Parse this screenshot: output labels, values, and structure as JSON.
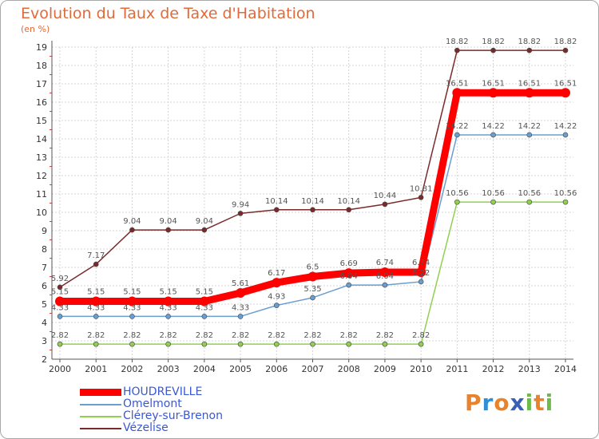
{
  "chart_data": {
    "type": "line",
    "title": "Evolution du Taux de Taxe d'Habitation",
    "subtitle": "(en %)",
    "x": [
      "2000",
      "2001",
      "2002",
      "2003",
      "2004",
      "2005",
      "2006",
      "2007",
      "2008",
      "2009",
      "2010",
      "2011",
      "2012",
      "2013",
      "2014"
    ],
    "ylim": [
      2,
      19
    ],
    "yticks": [
      "2",
      "3",
      "4",
      "5",
      "6",
      "7",
      "8",
      "9",
      "10",
      "11",
      "12",
      "13",
      "14",
      "15",
      "16",
      "17",
      "18",
      "19"
    ],
    "grid": true,
    "legend_position": "bottom-left",
    "series": [
      {
        "name": "HOUDREVILLE",
        "color": "#ff0000",
        "values": [
          5.15,
          5.15,
          5.15,
          5.15,
          5.15,
          5.61,
          6.17,
          6.5,
          6.69,
          6.74,
          6.74,
          16.51,
          16.51,
          16.51,
          16.51
        ],
        "labels": [
          "5.15",
          "5.15",
          "5.15",
          "5.15",
          "5.15",
          "5.61",
          "6.17",
          "6.5",
          "6.69",
          "6.74",
          "6.74",
          "16.51",
          "16.51",
          "16.51",
          "16.51"
        ]
      },
      {
        "name": "Omelmont",
        "color": "#6a9ed0",
        "values": [
          4.33,
          4.33,
          4.33,
          4.33,
          4.33,
          4.33,
          4.93,
          5.35,
          6.04,
          6.04,
          6.22,
          14.22,
          14.22,
          14.22,
          14.22
        ],
        "labels": [
          "4.33",
          "4.33",
          "4.33",
          "4.33",
          "4.33",
          "4.33",
          "4.93",
          "5.35",
          "6.04",
          "6.04",
          "6.22",
          "14.22",
          "14.22",
          "14.22",
          "14.22"
        ]
      },
      {
        "name": "Clérey-sur-Brenon",
        "color": "#8fd14f",
        "values": [
          2.82,
          2.82,
          2.82,
          2.82,
          2.82,
          2.82,
          2.82,
          2.82,
          2.82,
          2.82,
          2.82,
          10.56,
          10.56,
          10.56,
          10.56
        ],
        "labels": [
          "2.82",
          "2.82",
          "2.82",
          "2.82",
          "2.82",
          "2.82",
          "2.82",
          "2.82",
          "2.82",
          "2.82",
          "2.82",
          "10.56",
          "10.56",
          "10.56",
          "10.56"
        ]
      },
      {
        "name": "Vézelise",
        "color": "#7a2a2a",
        "values": [
          5.92,
          7.17,
          9.04,
          9.04,
          9.04,
          9.94,
          10.14,
          10.14,
          10.14,
          10.44,
          10.81,
          18.82,
          18.82,
          18.82,
          18.82
        ],
        "labels": [
          "5.92",
          "7.17",
          "9.04",
          "9.04",
          "9.04",
          "9.94",
          "10.14",
          "10.14",
          "10.14",
          "10.44",
          "10.81",
          "18.82",
          "18.82",
          "18.82",
          "18.82"
        ]
      }
    ]
  },
  "logo": {
    "text": "Proxiti",
    "letters": [
      "P",
      "r",
      "o",
      "x",
      "i",
      "t",
      "i"
    ],
    "colors": [
      "#e9832b",
      "#2e8fd6",
      "#e9832b",
      "#3a5fb5",
      "#6cbd45",
      "#e9832b",
      "#6cbd45"
    ]
  }
}
